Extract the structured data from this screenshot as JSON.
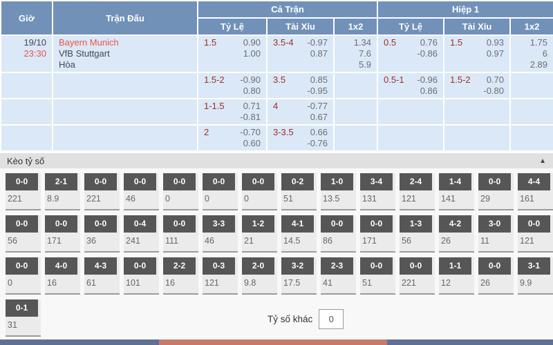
{
  "colors": {
    "header_bg": "#7191b9",
    "row_bg": "#dbe8f7",
    "handicap_line": "#9c2f26",
    "odds_text": "#6e6e6e",
    "highlight_red": "#e8554a",
    "score_button_bg": "#565656",
    "section_bar_bg": "#e0e0e0",
    "bottom_bar_blue": "#5f7093",
    "bottom_bar_salmon": "#c7796c"
  },
  "table": {
    "headers": {
      "time": "Giờ",
      "match": "Trận Đấu",
      "full_match": "Cả Trận",
      "first_half": "Hiệp 1",
      "handicap": "Tỷ Lệ",
      "over_under": "Tài Xỉu",
      "one_x_two": "1x2"
    },
    "match": {
      "date": "19/10",
      "time": "23:30",
      "home": "Bayern Munich",
      "away": "VfB Stuttgart",
      "draw": "Hòa"
    },
    "rows": [
      {
        "ft_handicap": {
          "line": "1.5",
          "odds": [
            "0.90",
            "1.00"
          ]
        },
        "ft_over_under": {
          "line": "3.5-4",
          "odds": [
            "-0.97",
            "0.87"
          ]
        },
        "ft_1x2": [
          "1.34",
          "7.6",
          "5.9"
        ],
        "h1_handicap": {
          "line": "0.5",
          "odds": [
            "0.76",
            "-0.86"
          ]
        },
        "h1_over_under": {
          "line": "1.5",
          "odds": [
            "0.93",
            "0.97"
          ]
        },
        "h1_1x2": [
          "1.75",
          "6",
          "2.89"
        ]
      },
      {
        "ft_handicap": {
          "line": "1.5-2",
          "odds": [
            "-0.90",
            "0.80"
          ]
        },
        "ft_over_under": {
          "line": "3.5",
          "odds": [
            "0.85",
            "-0.95"
          ]
        },
        "ft_1x2": [],
        "h1_handicap": {
          "line": "0.5-1",
          "odds": [
            "-0.96",
            "0.86"
          ]
        },
        "h1_over_under": {
          "line": "1.5-2",
          "odds": [
            "0.70",
            "-0.80"
          ]
        },
        "h1_1x2": []
      },
      {
        "ft_handicap": {
          "line": "1-1.5",
          "odds": [
            "0.71",
            "-0.81"
          ]
        },
        "ft_over_under": {
          "line": "4",
          "odds": [
            "-0.77",
            "0.67"
          ]
        },
        "ft_1x2": [],
        "h1_handicap": null,
        "h1_over_under": null,
        "h1_1x2": []
      },
      {
        "ft_handicap": {
          "line": "2",
          "odds": [
            "-0.70",
            "0.60"
          ]
        },
        "ft_over_under": {
          "line": "3-3.5",
          "odds": [
            "0.66",
            "-0.76"
          ]
        },
        "ft_1x2": [],
        "h1_handicap": null,
        "h1_over_under": null,
        "h1_1x2": []
      }
    ]
  },
  "score_section": {
    "title": "Kèo tỷ số",
    "collapse_icon": "▲",
    "rows": [
      [
        {
          "score": "0-0",
          "odds": "221"
        },
        {
          "score": "2-1",
          "odds": "8.9"
        },
        {
          "score": "0-0",
          "odds": "221"
        },
        {
          "score": "0-0",
          "odds": "46"
        },
        {
          "score": "0-0",
          "odds": "0"
        },
        {
          "score": "0-0",
          "odds": "0"
        },
        {
          "score": "0-0",
          "odds": "0"
        },
        {
          "score": "0-2",
          "odds": "51"
        },
        {
          "score": "1-0",
          "odds": "13.5"
        },
        {
          "score": "3-4",
          "odds": "131"
        },
        {
          "score": "2-4",
          "odds": "121"
        },
        {
          "score": "1-4",
          "odds": "141"
        },
        {
          "score": "0-0",
          "odds": "29"
        },
        {
          "score": "4-4",
          "odds": "161"
        }
      ],
      [
        {
          "score": "0-0",
          "odds": "56"
        },
        {
          "score": "0-0",
          "odds": "171"
        },
        {
          "score": "0-0",
          "odds": "36"
        },
        {
          "score": "0-4",
          "odds": "241"
        },
        {
          "score": "0-0",
          "odds": "111"
        },
        {
          "score": "3-3",
          "odds": "46"
        },
        {
          "score": "1-2",
          "odds": "21"
        },
        {
          "score": "4-1",
          "odds": "14.5"
        },
        {
          "score": "0-0",
          "odds": "86"
        },
        {
          "score": "0-0",
          "odds": "171"
        },
        {
          "score": "1-3",
          "odds": "56"
        },
        {
          "score": "4-2",
          "odds": "26"
        },
        {
          "score": "3-0",
          "odds": "11"
        },
        {
          "score": "0-0",
          "odds": "121"
        }
      ],
      [
        {
          "score": "0-0",
          "odds": "0"
        },
        {
          "score": "4-0",
          "odds": "16"
        },
        {
          "score": "4-3",
          "odds": "61"
        },
        {
          "score": "0-0",
          "odds": "101"
        },
        {
          "score": "2-2",
          "odds": "16"
        },
        {
          "score": "0-3",
          "odds": "121"
        },
        {
          "score": "2-0",
          "odds": "9.8"
        },
        {
          "score": "3-2",
          "odds": "17.5"
        },
        {
          "score": "2-3",
          "odds": "41"
        },
        {
          "score": "0-0",
          "odds": "51"
        },
        {
          "score": "0-0",
          "odds": "221"
        },
        {
          "score": "1-1",
          "odds": "12"
        },
        {
          "score": "0-0",
          "odds": "26"
        },
        {
          "score": "3-1",
          "odds": "9.9"
        }
      ],
      [
        {
          "score": "0-1",
          "odds": "31"
        }
      ]
    ],
    "other_score": {
      "label": "Tỷ số khác",
      "value": "0"
    }
  }
}
